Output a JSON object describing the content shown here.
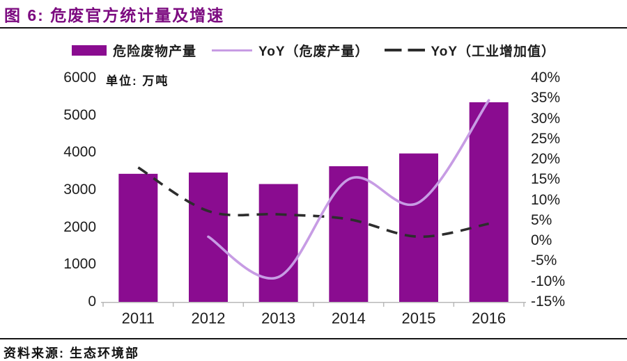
{
  "title": "图 6: 危废官方统计量及增速",
  "unit_label": "单位: 万吨",
  "source": "资料来源: 生态环境部",
  "colors": {
    "bar": "#8a0c90",
    "yoy_line": "#c79ce4",
    "industrial_line": "#2d2d2d",
    "title": "#7c0b80",
    "axis": "#b9b9b9",
    "rule": "#141414"
  },
  "legend": {
    "items": [
      {
        "marker": "bar",
        "label": "危险废物产量"
      },
      {
        "marker": "line",
        "label": "YoY（危废产量）"
      },
      {
        "marker": "dashed",
        "label": "YoY（工业增加值）"
      }
    ]
  },
  "chart_data": {
    "type": "bar",
    "subtype": "combo-bar-line",
    "title": "危废官方统计量及增速",
    "categories": [
      "2011",
      "2012",
      "2013",
      "2014",
      "2015",
      "2016"
    ],
    "series": [
      {
        "name": "危险废物产量",
        "type": "bar",
        "axis": "left",
        "values": [
          3431,
          3465,
          3157,
          3634,
          3976,
          5347
        ]
      },
      {
        "name": "YoY（危废产量）",
        "type": "line",
        "style": "solid-smooth",
        "axis": "right",
        "values": [
          null,
          1.0,
          -8.9,
          15.1,
          9.4,
          34.5
        ]
      },
      {
        "name": "YoY（工业增加值）",
        "type": "line",
        "style": "dashed-smooth",
        "axis": "right",
        "values": [
          18.0,
          7.3,
          6.5,
          5.3,
          1.0,
          4.2
        ]
      }
    ],
    "left_axis": {
      "min": 0,
      "max": 6000,
      "step": 1000,
      "ticks": [
        "6000",
        "5000",
        "4000",
        "3000",
        "2000",
        "1000",
        "0"
      ],
      "unit": "万吨"
    },
    "right_axis": {
      "min": -15,
      "max": 40,
      "step": 5,
      "ticks": [
        "40%",
        "35%",
        "30%",
        "25%",
        "20%",
        "15%",
        "10%",
        "5%",
        "0%",
        "-5%",
        "-10%",
        "-15%"
      ]
    },
    "x_axis": {
      "labels": [
        "2011",
        "2012",
        "2013",
        "2014",
        "2015",
        "2016"
      ]
    },
    "grid": false,
    "legend_position": "top"
  }
}
